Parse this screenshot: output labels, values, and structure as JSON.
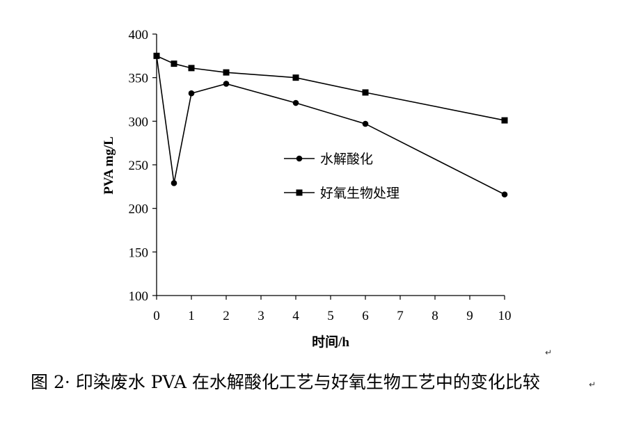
{
  "chart_data": {
    "type": "line",
    "x_ticks": [
      "0",
      "1",
      "2",
      "3",
      "4",
      "5",
      "6",
      "7",
      "8",
      "9",
      "10"
    ],
    "y_ticks": [
      100,
      150,
      200,
      250,
      300,
      350,
      400
    ],
    "ylim": [
      100,
      400
    ],
    "xlabel": "时间/h",
    "ylabel": "PVA  mg/L",
    "series": [
      {
        "name": "水解酸化",
        "marker": "circle",
        "points": [
          {
            "x": "0",
            "y": 375
          },
          {
            "x": "0.5",
            "y": 229
          },
          {
            "x": "1",
            "y": 332
          },
          {
            "x": "2",
            "y": 343
          },
          {
            "x": "4",
            "y": 321
          },
          {
            "x": "6",
            "y": 297
          },
          {
            "x": "10",
            "y": 216
          }
        ]
      },
      {
        "name": "好氧生物处理",
        "marker": "square",
        "points": [
          {
            "x": "0",
            "y": 375
          },
          {
            "x": "0.5",
            "y": 366
          },
          {
            "x": "1",
            "y": 361
          },
          {
            "x": "2",
            "y": 356
          },
          {
            "x": "4",
            "y": 350
          },
          {
            "x": "6",
            "y": 333
          },
          {
            "x": "10",
            "y": 301
          }
        ]
      }
    ],
    "grid": false,
    "legend_position": "center-right",
    "line_color": "#000000"
  },
  "caption": "图 2· 印染废水 PVA 在水解酸化工艺与好氧生物工艺中的变化比较"
}
